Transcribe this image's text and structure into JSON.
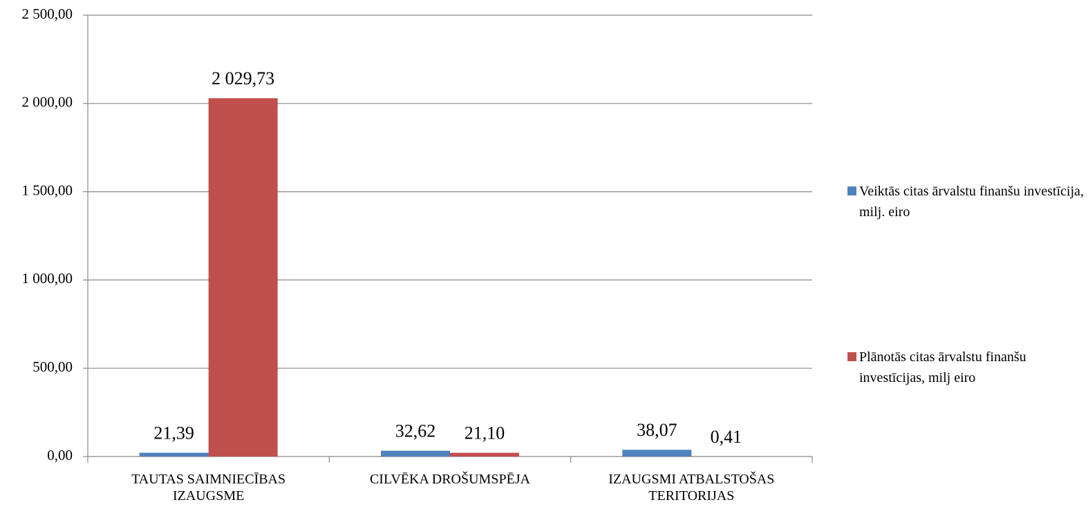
{
  "chart_data": {
    "type": "bar",
    "categories": [
      "TAUTAS SAIMNIECĪBAS IZAUGSME",
      "CILVĒKA DROŠUMSPĒJA",
      "IZAUGSMI ATBALSTOŠAS TERITORIJAS"
    ],
    "series": [
      {
        "name": "Veiktās citas ārvalstu finanšu investīcija, milj. eiro",
        "color": "#4f81bd",
        "values": [
          21.39,
          32.62,
          38.07
        ],
        "value_labels": [
          "21,39",
          "32,62",
          "38,07"
        ]
      },
      {
        "name": "Plānotās citas ārvalstu finanšu investīcijas, milj eiro",
        "color": "#c0504d",
        "values": [
          2029.73,
          21.1,
          0.41
        ],
        "value_labels": [
          "2 029,73",
          "21,10",
          "0,41"
        ]
      }
    ],
    "ylim": [
      0,
      2500
    ],
    "yticks": [
      {
        "value": 0,
        "label": "0,00"
      },
      {
        "value": 500,
        "label": "500,00"
      },
      {
        "value": 1000,
        "label": "1 000,00"
      },
      {
        "value": 1500,
        "label": "1 500,00"
      },
      {
        "value": 2000,
        "label": "2 000,00"
      },
      {
        "value": 2500,
        "label": "2 500,00"
      }
    ],
    "grid": true,
    "legend": "right"
  }
}
